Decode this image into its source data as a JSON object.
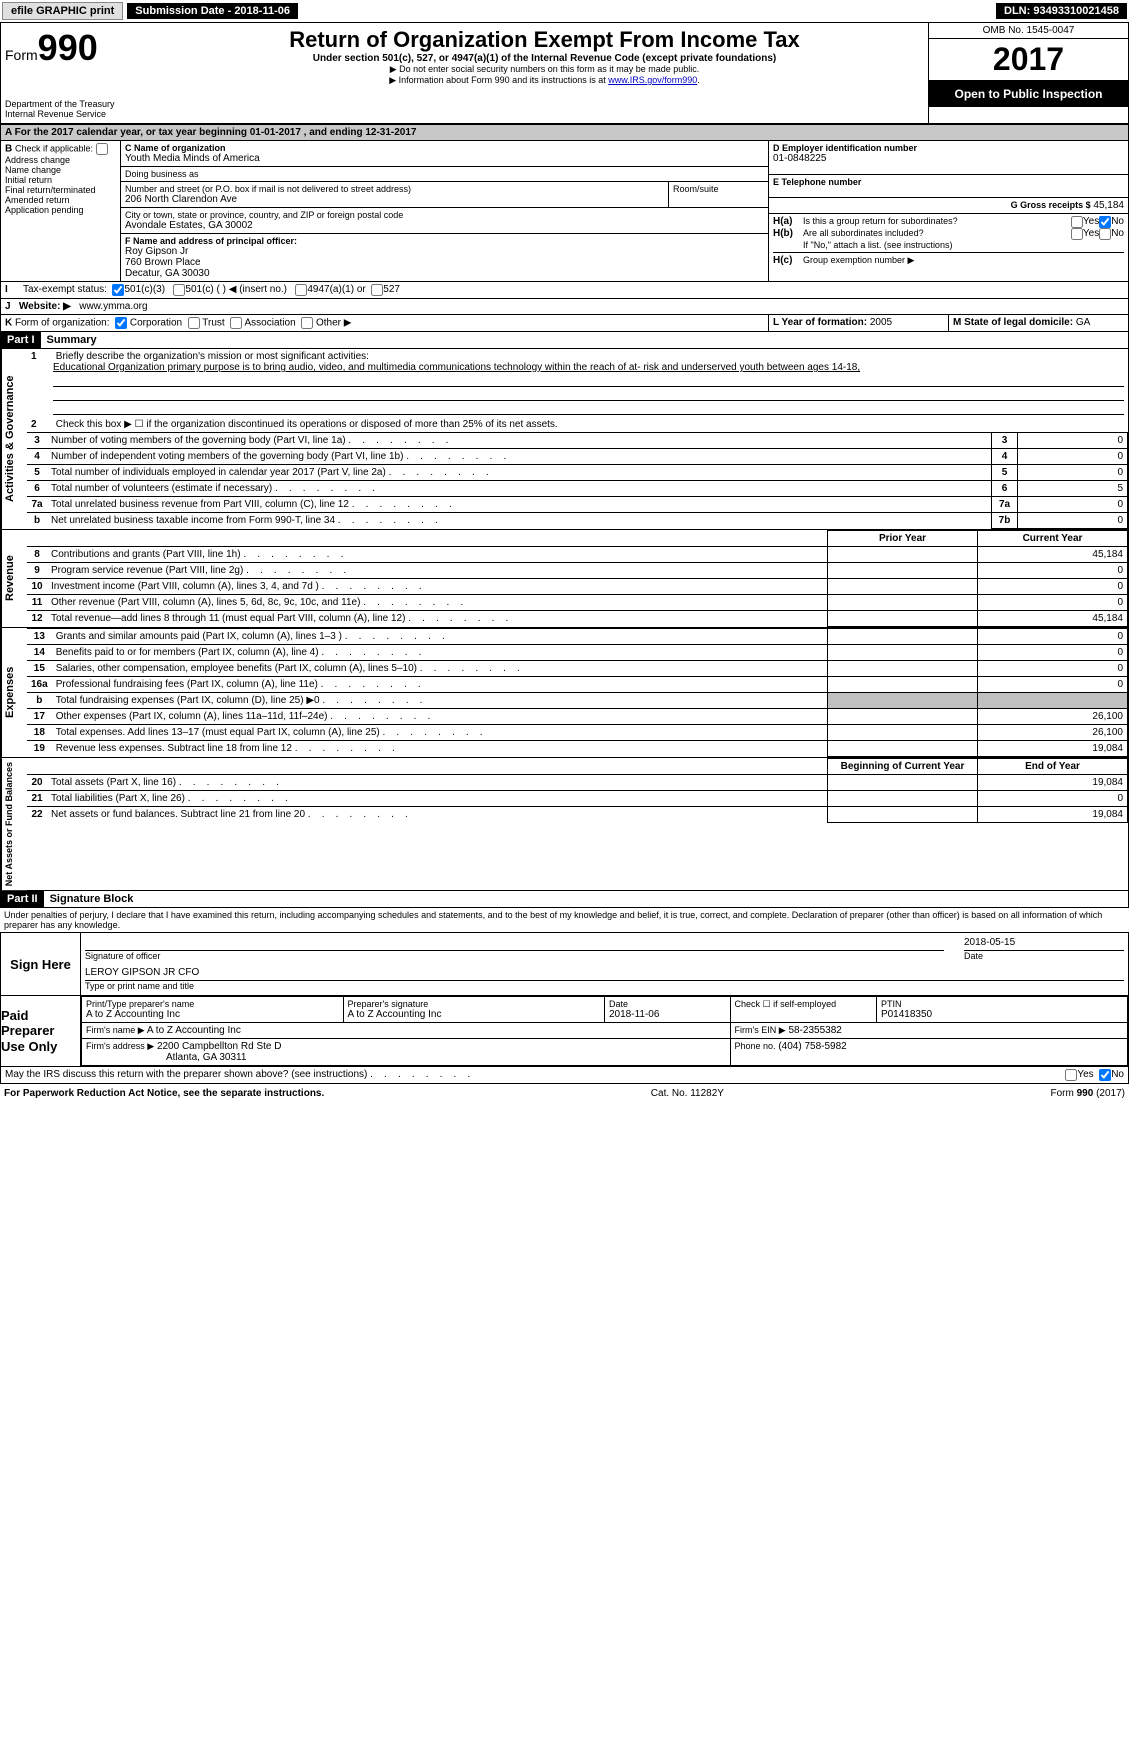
{
  "topbar": {
    "efile": "efile GRAPHIC print",
    "submission": "Submission Date - 2018-11-06",
    "dln_label": "DLN:",
    "dln": "93493310021458"
  },
  "header": {
    "form_prefix": "Form",
    "form_num": "990",
    "dept": "Department of the Treasury",
    "irs": "Internal Revenue Service",
    "title": "Return of Organization Exempt From Income Tax",
    "subtitle": "Under section 501(c), 527, or 4947(a)(1) of the Internal Revenue Code (except private foundations)",
    "note1": "▶ Do not enter social security numbers on this form as it may be made public.",
    "note2": "▶ Information about Form 990 and its instructions is at ",
    "link": "www.IRS.gov/form990",
    "omb": "OMB No. 1545-0047",
    "year": "2017",
    "open": "Open to Public Inspection"
  },
  "A": {
    "text": "For the 2017 calendar year, or tax year beginning 01-01-2017",
    "ending": ", and ending 12-31-2017"
  },
  "B": {
    "label": "Check if applicable:",
    "items": [
      "Address change",
      "Name change",
      "Initial return",
      "Final return/terminated",
      "Amended return",
      "Application pending"
    ]
  },
  "C": {
    "name_label": "C Name of organization",
    "name": "Youth Media Minds of America",
    "dba_label": "Doing business as",
    "dba": "",
    "street_label": "Number and street (or P.O. box if mail is not delivered to street address)",
    "street": "206 North Clarendon Ave",
    "room_label": "Room/suite",
    "city_label": "City or town, state or province, country, and ZIP or foreign postal code",
    "city": "Avondale Estates, GA  30002"
  },
  "D": {
    "label": "D Employer identification number",
    "value": "01-0848225"
  },
  "E": {
    "label": "E Telephone number",
    "value": ""
  },
  "F": {
    "label": "F  Name and address of principal officer:",
    "name": "Roy Gipson Jr",
    "addr1": "760 Brown Place",
    "addr2": "Decatur, GA  30030"
  },
  "G": {
    "label": "G Gross receipts $",
    "value": "45,184"
  },
  "H": {
    "a": "Is this a group return for subordinates?",
    "b": "Are all subordinates included?",
    "b_note": "If \"No,\" attach a list. (see instructions)",
    "c": "Group exemption number ▶",
    "yes": "Yes",
    "no": "No"
  },
  "I": {
    "label": "Tax-exempt status:",
    "opts": [
      "501(c)(3)",
      "501(c) (  ) ◀ (insert no.)",
      "4947(a)(1) or",
      "527"
    ]
  },
  "J": {
    "label": "Website: ▶",
    "value": "www.ymma.org"
  },
  "K": {
    "label": "Form of organization:",
    "opts": [
      "Corporation",
      "Trust",
      "Association",
      "Other ▶"
    ]
  },
  "L": {
    "label": "L Year of formation:",
    "value": "2005"
  },
  "M": {
    "label": "M State of legal domicile:",
    "value": "GA"
  },
  "part1": {
    "hdr": "Part I",
    "title": "Summary",
    "side_ag": "Activities & Governance",
    "side_rev": "Revenue",
    "side_exp": "Expenses",
    "side_na": "Net Assets or Fund Balances",
    "l1_label": "Briefly describe the organization's mission or most significant activities:",
    "l1_text": "Educational Organization primary purpose is to bring audio, video, and multimedia communications technology within the reach of at- risk and underserved youth between ages 14-18,",
    "l2": "Check this box ▶ ☐ if the organization discontinued its operations or disposed of more than 25% of its net assets.",
    "rows_gov": [
      {
        "n": "3",
        "t": "Number of voting members of the governing body (Part VI, line 1a)",
        "c": "3",
        "v": "0"
      },
      {
        "n": "4",
        "t": "Number of independent voting members of the governing body (Part VI, line 1b)",
        "c": "4",
        "v": "0"
      },
      {
        "n": "5",
        "t": "Total number of individuals employed in calendar year 2017 (Part V, line 2a)",
        "c": "5",
        "v": "0"
      },
      {
        "n": "6",
        "t": "Total number of volunteers (estimate if necessary)",
        "c": "6",
        "v": "5"
      },
      {
        "n": "7a",
        "t": "Total unrelated business revenue from Part VIII, column (C), line 12",
        "c": "7a",
        "v": "0"
      },
      {
        "n": "b",
        "t": "Net unrelated business taxable income from Form 990-T, line 34",
        "c": "7b",
        "v": "0"
      }
    ],
    "col_py": "Prior Year",
    "col_cy": "Current Year",
    "rows_rev": [
      {
        "n": "8",
        "t": "Contributions and grants (Part VIII, line 1h)",
        "py": "",
        "cy": "45,184"
      },
      {
        "n": "9",
        "t": "Program service revenue (Part VIII, line 2g)",
        "py": "",
        "cy": "0"
      },
      {
        "n": "10",
        "t": "Investment income (Part VIII, column (A), lines 3, 4, and 7d )",
        "py": "",
        "cy": "0"
      },
      {
        "n": "11",
        "t": "Other revenue (Part VIII, column (A), lines 5, 6d, 8c, 9c, 10c, and 11e)",
        "py": "",
        "cy": "0"
      },
      {
        "n": "12",
        "t": "Total revenue—add lines 8 through 11 (must equal Part VIII, column (A), line 12)",
        "py": "",
        "cy": "45,184"
      }
    ],
    "rows_exp": [
      {
        "n": "13",
        "t": "Grants and similar amounts paid (Part IX, column (A), lines 1–3 )",
        "py": "",
        "cy": "0"
      },
      {
        "n": "14",
        "t": "Benefits paid to or for members (Part IX, column (A), line 4)",
        "py": "",
        "cy": "0"
      },
      {
        "n": "15",
        "t": "Salaries, other compensation, employee benefits (Part IX, column (A), lines 5–10)",
        "py": "",
        "cy": "0"
      },
      {
        "n": "16a",
        "t": "Professional fundraising fees (Part IX, column (A), line 11e)",
        "py": "",
        "cy": "0"
      },
      {
        "n": "b",
        "t": "Total fundraising expenses (Part IX, column (D), line 25) ▶0",
        "py": "shade",
        "cy": "shade"
      },
      {
        "n": "17",
        "t": "Other expenses (Part IX, column (A), lines 11a–11d, 11f–24e)",
        "py": "",
        "cy": "26,100"
      },
      {
        "n": "18",
        "t": "Total expenses. Add lines 13–17 (must equal Part IX, column (A), line 25)",
        "py": "",
        "cy": "26,100"
      },
      {
        "n": "19",
        "t": "Revenue less expenses. Subtract line 18 from line 12",
        "py": "",
        "cy": "19,084"
      }
    ],
    "col_boy": "Beginning of Current Year",
    "col_eoy": "End of Year",
    "rows_na": [
      {
        "n": "20",
        "t": "Total assets (Part X, line 16)",
        "py": "",
        "cy": "19,084"
      },
      {
        "n": "21",
        "t": "Total liabilities (Part X, line 26)",
        "py": "",
        "cy": "0"
      },
      {
        "n": "22",
        "t": "Net assets or fund balances. Subtract line 21 from line 20",
        "py": "",
        "cy": "19,084"
      }
    ]
  },
  "part2": {
    "hdr": "Part II",
    "title": "Signature Block",
    "decl": "Under penalties of perjury, I declare that I have examined this return, including accompanying schedules and statements, and to the best of my knowledge and belief, it is true, correct, and complete. Declaration of preparer (other than officer) is based on all information of which preparer has any knowledge.",
    "sign_here": "Sign Here",
    "sig_officer": "Signature of officer",
    "date": "Date",
    "date_val": "2018-05-15",
    "name_val": "LEROY GIPSON JR  CFO",
    "name_label": "Type or print name and title",
    "paid": "Paid Preparer Use Only",
    "prep_name_label": "Print/Type preparer's name",
    "prep_name": "A to Z Accounting Inc",
    "prep_sig_label": "Preparer's signature",
    "prep_sig": "A to Z Accounting Inc",
    "prep_date_label": "Date",
    "prep_date": "2018-11-06",
    "self_emp": "Check ☐ if self-employed",
    "ptin_label": "PTIN",
    "ptin": "P01418350",
    "firm_name_label": "Firm's name    ▶",
    "firm_name": "A to Z Accounting Inc",
    "firm_ein_label": "Firm's EIN ▶",
    "firm_ein": "58-2355382",
    "firm_addr_label": "Firm's address ▶",
    "firm_addr1": "2200 Campbellton Rd Ste D",
    "firm_addr2": "Atlanta, GA  30311",
    "phone_label": "Phone no.",
    "phone": "(404) 758-5982",
    "discuss": "May the IRS discuss this return with the preparer shown above? (see instructions)",
    "yes": "Yes",
    "no": "No"
  },
  "footer": {
    "pra": "For Paperwork Reduction Act Notice, see the separate instructions.",
    "cat": "Cat. No. 11282Y",
    "form": "Form 990 (2017)"
  }
}
